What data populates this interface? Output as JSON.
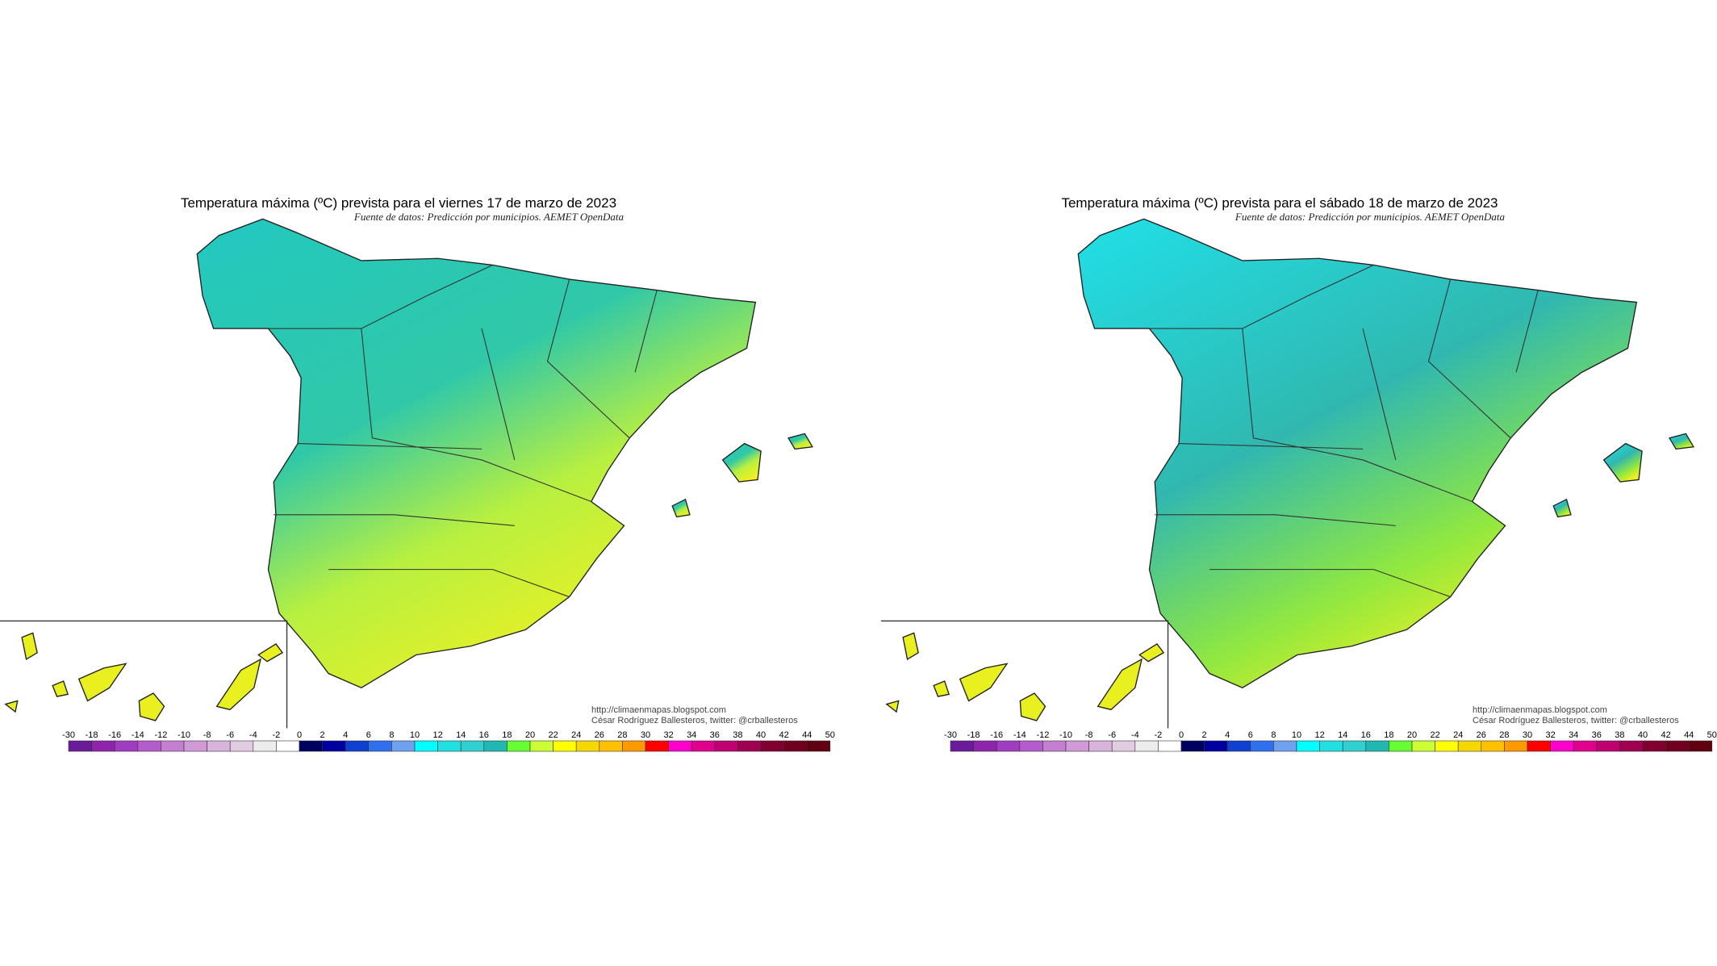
{
  "panels": [
    {
      "title": "Temperatura máxima (ºC) prevista para el viernes 17 de marzo de 2023",
      "source": "Fuente de datos: Predicción por municipios. AEMET OpenData",
      "url": "http://climaenmapas.blogspot.com",
      "author": "César Rodríguez Ballesteros, twitter: @crballesteros"
    },
    {
      "title": "Temperatura máxima (ºC) prevista para el sábado 18 de marzo de 2023",
      "source": "Fuente de datos: Predicción por municipios. AEMET OpenData",
      "url": "http://climaenmapas.blogspot.com",
      "author": "César Rodríguez Ballesteros, twitter: @crballesteros"
    }
  ],
  "legend": {
    "labels": [
      -30,
      -18,
      -16,
      -14,
      -12,
      -10,
      -8,
      -6,
      -4,
      -2,
      0,
      2,
      4,
      6,
      8,
      10,
      12,
      14,
      16,
      18,
      20,
      22,
      24,
      26,
      28,
      30,
      32,
      34,
      36,
      38,
      40,
      42,
      44,
      50
    ],
    "colors": [
      "#6a1b9a",
      "#8e24aa",
      "#a03cc0",
      "#b55ccc",
      "#c47fd0",
      "#cf9ad6",
      "#d8b4dc",
      "#e2cce4",
      "#ececec",
      "#ffffff",
      "#000060",
      "#0000a0",
      "#1040d0",
      "#3070f0",
      "#70a0f0",
      "#00ffff",
      "#20e0e0",
      "#30d0d0",
      "#20b8b0",
      "#66ff33",
      "#ccff33",
      "#ffff00",
      "#f5d800",
      "#ffc000",
      "#ff9900",
      "#ff0000",
      "#ff00cc",
      "#e0008c",
      "#c00070",
      "#a00050",
      "#800030",
      "#700020",
      "#600010"
    ]
  }
}
